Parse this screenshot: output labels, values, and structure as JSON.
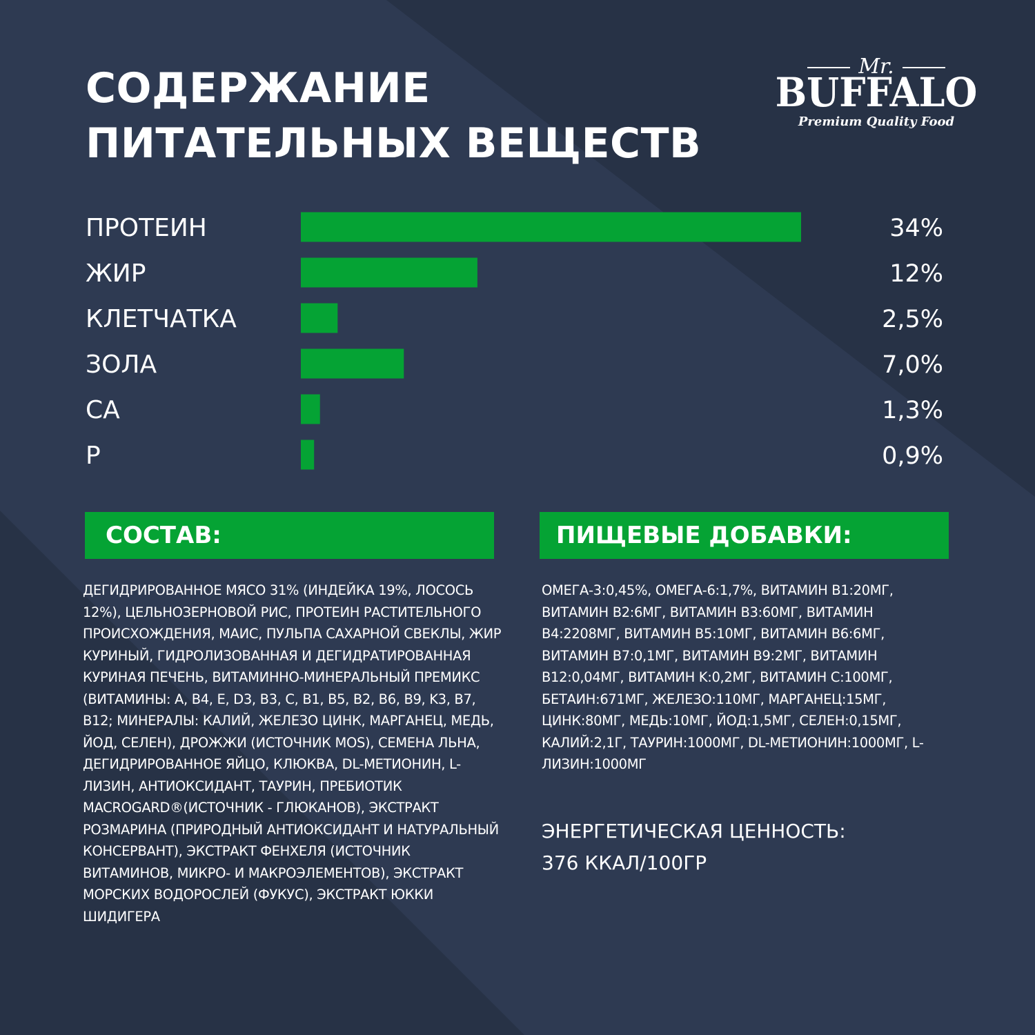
{
  "title": {
    "line1": "СОДЕРЖАНИЕ",
    "line2": "ПИТАТЕЛЬНЫХ ВЕЩЕСТВ"
  },
  "logo": {
    "mr": "Mr.",
    "brand": "BUFFALO",
    "tagline": "Premium Quality Food"
  },
  "colors": {
    "background": "#2e3a52",
    "background_dark": "#273246",
    "bar": "#05a334",
    "text": "#ffffff"
  },
  "chart_data": {
    "type": "bar",
    "orientation": "horizontal",
    "categories": [
      "ПРОТЕИН",
      "ЖИР",
      "КЛЕТЧАТКА",
      "ЗОЛА",
      "CA",
      "P"
    ],
    "values": [
      34,
      12,
      2.5,
      7.0,
      1.3,
      0.9
    ],
    "value_labels": [
      "34%",
      "12%",
      "2,5%",
      "7,0%",
      "1,3%",
      "0,9%"
    ],
    "unit": "%"
  },
  "sections": {
    "ingredients_title": "СОСТАВ:",
    "additives_title": "ПИЩЕВЫЕ ДОБАВКИ:"
  },
  "ingredients_text": "ДЕГИДРИРОВАННОЕ МЯСО 31% (ИНДЕЙКА 19%, ЛОСОСЬ 12%), ЦЕЛЬНОЗЕРНОВОЙ РИС, ПРОТЕИН РАСТИТЕЛЬНОГО ПРОИСХОЖДЕНИЯ, МАИС, ПУЛЬПА САХАРНОЙ СВЕКЛЫ, ЖИР КУРИНЫЙ, ГИДРОЛИЗОВАННАЯ И ДЕГИДРАТИРОВАННАЯ КУРИНАЯ ПЕЧЕНЬ, ВИТАМИННО-МИНЕРАЛЬНЫЙ ПРЕМИКС (ВИТАМИНЫ: A, B4, E, D3, B3, C, B1, B5, B2, B6, B9, K3, B7, B12; МИНЕРАЛЫ: КАЛИЙ, ЖЕЛЕЗО ЦИНК, МАРГАНЕЦ, МЕДЬ, ЙОД, СЕЛЕН), ДРОЖЖИ (ИСТОЧНИК MOS), СЕМЕНА ЛЬНА, ДЕГИДРИРОВАННОЕ ЯЙЦО, КЛЮКВА, DL-МЕТИОНИН, L-ЛИЗИН, АНТИОКСИДАНТ, ТАУРИН, ПРЕБИОТИК MACROGARD®(ИСТОЧНИК - ГЛЮКАНОВ), ЭКСТРАКТ РОЗМАРИНА (ПРИРОДНЫЙ АНТИОКСИДАНТ И НАТУРАЛЬНЫЙ КОНСЕРВАНТ), ЭКСТРАКТ ФЕНХЕЛЯ (ИСТОЧНИК ВИТАМИНОВ, МИКРО- И МАКРОЭЛЕМЕНТОВ), ЭКСТРАКТ МОРСКИХ ВОДОРОСЛЕЙ (ФУКУС), ЭКСТРАКТ ЮККИ ШИДИГЕРА",
  "additives_text": "ОМЕГА-3:0,45%, ОМЕГА-6:1,7%, ВИТАМИН B1:20МГ, ВИТАМИН B2:6МГ, ВИТАМИН B3:60МГ, ВИТАМИН B4:2208МГ, ВИТАМИН B5:10МГ, ВИТАМИН B6:6МГ, ВИТАМИН B7:0,1МГ, ВИТАМИН B9:2МГ, ВИТАМИН B12:0,04МГ, ВИТАМИН K:0,2МГ, ВИТАМИН C:100МГ, БЕТАИН:671МГ, ЖЕЛЕЗО:110МГ, МАРГАНЕЦ:15МГ, ЦИНК:80МГ, МЕДЬ:10МГ, ЙОД:1,5МГ, СЕЛЕН:0,15МГ, КАЛИЙ:2,1Г, ТАУРИН:1000МГ, DL-МЕТИОНИН:1000МГ, L-ЛИЗИН:1000МГ",
  "energy": {
    "label": "ЭНЕРГЕТИЧЕСКАЯ ЦЕННОСТЬ:",
    "value": "376 ККАЛ/100ГР"
  }
}
